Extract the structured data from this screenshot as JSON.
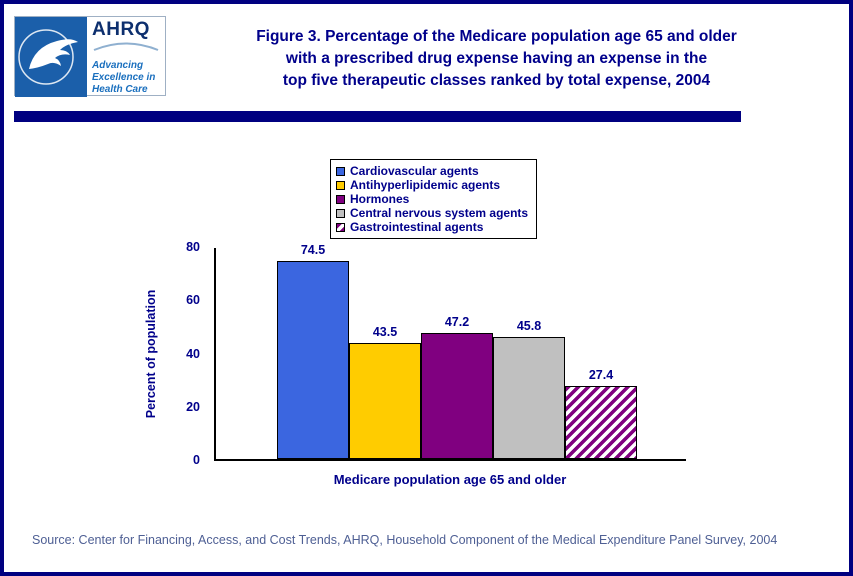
{
  "page": {
    "border_color": "#000080",
    "background": "#ffffff",
    "title_color": "#00008B"
  },
  "header": {
    "logo": {
      "ahrq_acronym": "AHRQ",
      "tagline_lines": [
        "Advancing",
        "Excellence in",
        "Health Care"
      ]
    },
    "title_lines": [
      "Figure 3. Percentage of the Medicare population age 65 and older",
      "with a prescribed drug expense having an expense in the",
      "top five therapeutic classes ranked by total expense, 2004"
    ]
  },
  "chart_data": {
    "type": "bar",
    "title": "Figure 3. Percentage of the Medicare population age 65 and older with a prescribed drug expense having an expense in the top five therapeutic classes ranked by total expense, 2004",
    "categories": [
      "Cardiovascular agents",
      "Antihyperlipidemic agents",
      "Hormones",
      "Central nervous system agents",
      "Gastrointestinal agents"
    ],
    "values": [
      74.5,
      43.5,
      47.2,
      45.8,
      27.4
    ],
    "series_colors": [
      "#3B66E0",
      "#FFCC00",
      "#800080",
      "#C0C0C0",
      "hatch:#800080"
    ],
    "xlabel": "Medicare population age 65 and older",
    "ylabel": "Percent of population",
    "ylim": [
      0,
      80
    ],
    "yticks": [
      0,
      20,
      40,
      60,
      80
    ],
    "grid": false,
    "legend_position": "top-center"
  },
  "footer": {
    "source": "Source: Center for Financing, Access, and Cost Trends, AHRQ, Household Component of the Medical Expenditure Panel Survey, 2004"
  }
}
